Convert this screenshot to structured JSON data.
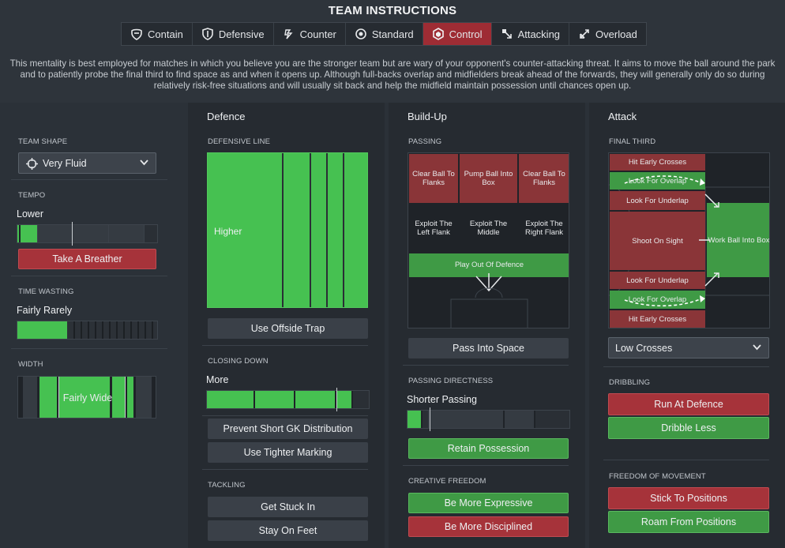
{
  "header": {
    "title": "TEAM INSTRUCTIONS",
    "tabs": [
      {
        "label": "Contain",
        "icon": "contain-icon"
      },
      {
        "label": "Defensive",
        "icon": "shield-icon"
      },
      {
        "label": "Counter",
        "icon": "counter-icon"
      },
      {
        "label": "Standard",
        "icon": "standard-icon"
      },
      {
        "label": "Control",
        "icon": "control-icon",
        "active": true
      },
      {
        "label": "Attacking",
        "icon": "attacking-icon"
      },
      {
        "label": "Overload",
        "icon": "overload-icon"
      }
    ],
    "description": "This mentality is best employed for matches in which you believe you are the stronger team but are wary of your opponent's counter-attacking threat. It aims to move the ball around the park and to patiently probe the final third to find space as and when it opens up. Although full-backs overlap and midfielders break ahead of the forwards, they will generally only do so during relatively risk-free situations and will usually sit back and help the midfield maintain possession until chances open up."
  },
  "general": {
    "team_shape_label": "TEAM SHAPE",
    "team_shape": "Very Fluid",
    "tempo_label": "TEMPO",
    "tempo": "Lower",
    "tempo_level": 0.2,
    "tempo_button": "Take A Breather",
    "time_wasting_label": "TIME WASTING",
    "time_wasting": "Fairly Rarely",
    "time_wasting_level": 0.37,
    "width_label": "WIDTH",
    "width": "Fairly Wide"
  },
  "defence": {
    "heading": "Defence",
    "line_label": "DEFENSIVE LINE",
    "line": "Higher",
    "offside_button": "Use Offside Trap",
    "closing_label": "CLOSING DOWN",
    "closing": "More",
    "closing_level": 0.82,
    "gk_button": "Prevent Short GK Distribution",
    "marking_button": "Use Tighter Marking",
    "tackling_label": "TACKLING",
    "tackle_button_1": "Get Stuck In",
    "tackle_button_2": "Stay On Feet"
  },
  "buildup": {
    "heading": "Build-Up",
    "passing_label": "PASSING",
    "zones": {
      "clear_left": "Clear Ball To Flanks",
      "pump": "Pump Ball Into Box",
      "clear_right": "Clear Ball To Flanks",
      "exploit_left": "Exploit The Left Flank",
      "exploit_middle": "Exploit The Middle",
      "exploit_right": "Exploit The Right Flank",
      "play_out": "Play Out Of Defence"
    },
    "space_button": "Pass Into Space",
    "directness_label": "PASSING DIRECTNESS",
    "directness": "Shorter Passing",
    "directness_level": 0.1,
    "retain_button": "Retain Possession",
    "creative_label": "CREATIVE FREEDOM",
    "expressive_button": "Be More Expressive",
    "disciplined_button": "Be More Disciplined"
  },
  "attack": {
    "heading": "Attack",
    "final_third_label": "FINAL THIRD",
    "zones": {
      "hit_early_top": "Hit Early Crosses",
      "overlap_top": "Look For Overlap",
      "underlap_top": "Look For Underlap",
      "shoot": "Shoot On Sight",
      "work_box": "Work Ball Into Box",
      "underlap_bottom": "Look For Underlap",
      "overlap_bottom": "Look For Overlap",
      "hit_early_bottom": "Hit Early Crosses"
    },
    "crosses": "Low Crosses",
    "dribbling_label": "DRIBBLING",
    "run_button": "Run At Defence",
    "dribble_button": "Dribble Less",
    "freedom_label": "FREEDOM OF MOVEMENT",
    "stick_button": "Stick To Positions",
    "roam_button": "Roam From Positions"
  },
  "colors": {
    "active_tab": "#9e2c34",
    "green": "#46c151",
    "red": "#8a3538"
  }
}
